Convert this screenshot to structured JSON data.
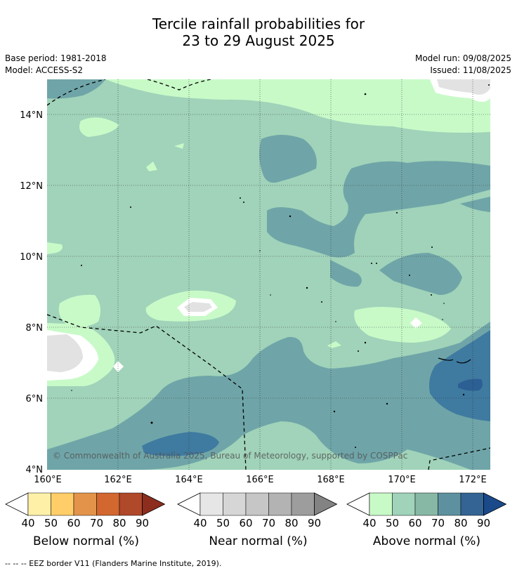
{
  "title": {
    "line1": "Tercile rainfall probabilities for",
    "line2": "23 to 29 August 2025"
  },
  "meta": {
    "base_period": "Base period: 1981-2018",
    "model": "Model: ACCESS-S2",
    "model_run": "Model run: 09/08/2025",
    "issued": "Issued: 11/08/2025"
  },
  "map": {
    "lat_labels": [
      "14°N",
      "12°N",
      "10°N",
      "8°N",
      "6°N",
      "4°N"
    ],
    "lon_labels": [
      "160°E",
      "162°E",
      "164°E",
      "166°E",
      "168°E",
      "170°E",
      "172°E"
    ],
    "copyright": "© Commonwealth of Australia 2025, Bureau of Meteorology, supported by COSPPac"
  },
  "colorbars": [
    {
      "name": "below",
      "label": "Below normal (%)",
      "ticks": [
        "40",
        "50",
        "60",
        "70",
        "80",
        "90"
      ],
      "colors": [
        "#fff0a8",
        "#ffce68",
        "#e3944a",
        "#d2672f",
        "#b0482a",
        "#8c2d1e"
      ]
    },
    {
      "name": "near",
      "label": "Near normal (%)",
      "ticks": [
        "40",
        "50",
        "60",
        "70",
        "80",
        "90"
      ],
      "colors": [
        "#e6e6e6",
        "#d6d6d6",
        "#c6c6c6",
        "#b3b3b3",
        "#9d9d9d",
        "#838383"
      ]
    },
    {
      "name": "above",
      "label": "Above normal (%)",
      "ticks": [
        "40",
        "50",
        "60",
        "70",
        "80",
        "90"
      ],
      "colors": [
        "#c8fac8",
        "#a0d3b9",
        "#86b8a5",
        "#5d91a0",
        "#336494",
        "#1a4a8a"
      ]
    }
  ],
  "footer": "--  --  -- EEZ border V11 (Flanders Marine Institute, 2019)."
}
